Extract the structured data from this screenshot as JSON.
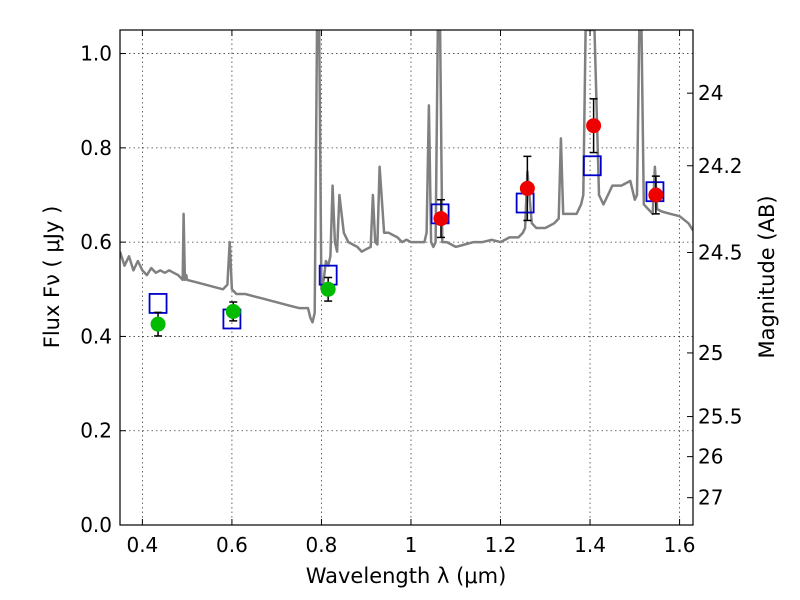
{
  "chart_data": {
    "type": "scatter",
    "title": "",
    "xlabel": "Wavelength  λ (μm)",
    "ylabel": "Flux  Fν  ( μJy )",
    "ylabel_right": "Magnitude (AB)",
    "xlim": [
      0.35,
      1.63
    ],
    "ylim": [
      0.0,
      1.05
    ],
    "grid": true,
    "x_ticks": [
      0.4,
      0.6,
      0.8,
      1.0,
      1.2,
      1.4,
      1.6
    ],
    "x_tick_labels": [
      "0.4",
      "0.6",
      "0.8",
      "1",
      "1.2",
      "1.4",
      "1.6"
    ],
    "y_ticks": [
      0.0,
      0.2,
      0.4,
      0.6,
      0.8,
      1.0
    ],
    "y_tick_labels": [
      "0.0",
      "0.2",
      "0.4",
      "0.6",
      "0.8",
      "1.0"
    ],
    "right_ticks": [
      {
        "label": "24",
        "flux": 0.916
      },
      {
        "label": "24.2",
        "flux": 0.762
      },
      {
        "label": "24.5",
        "flux": 0.578
      },
      {
        "label": "25",
        "flux": 0.365
      },
      {
        "label": "25.5",
        "flux": 0.23
      },
      {
        "label": "26",
        "flux": 0.145
      },
      {
        "label": "27",
        "flux": 0.058
      }
    ],
    "series": [
      {
        "name": "model spectrum",
        "kind": "line",
        "color": "#808080",
        "x": [
          0.35,
          0.36,
          0.37,
          0.38,
          0.39,
          0.4,
          0.41,
          0.42,
          0.43,
          0.44,
          0.45,
          0.46,
          0.47,
          0.48,
          0.49,
          0.492,
          0.495,
          0.498,
          0.5,
          0.52,
          0.54,
          0.56,
          0.58,
          0.59,
          0.595,
          0.6,
          0.605,
          0.61,
          0.63,
          0.65,
          0.67,
          0.69,
          0.71,
          0.73,
          0.75,
          0.77,
          0.775,
          0.78,
          0.785,
          0.79,
          0.795,
          0.8,
          0.805,
          0.81,
          0.815,
          0.82,
          0.825,
          0.83,
          0.835,
          0.84,
          0.85,
          0.86,
          0.87,
          0.88,
          0.89,
          0.9,
          0.91,
          0.915,
          0.92,
          0.925,
          0.93,
          0.94,
          0.95,
          0.96,
          0.97,
          0.98,
          0.99,
          1.0,
          1.01,
          1.02,
          1.03,
          1.035,
          1.04,
          1.045,
          1.05,
          1.055,
          1.06,
          1.065,
          1.07,
          1.08,
          1.09,
          1.1,
          1.12,
          1.14,
          1.16,
          1.18,
          1.2,
          1.22,
          1.24,
          1.25,
          1.255,
          1.26,
          1.27,
          1.28,
          1.3,
          1.32,
          1.33,
          1.335,
          1.34,
          1.35,
          1.37,
          1.38,
          1.385,
          1.39,
          1.4,
          1.41,
          1.42,
          1.43,
          1.45,
          1.47,
          1.49,
          1.5,
          1.505,
          1.51,
          1.515,
          1.52,
          1.53,
          1.54,
          1.545,
          1.55,
          1.56,
          1.58,
          1.6,
          1.62,
          1.63
        ],
        "y": [
          0.58,
          0.55,
          0.57,
          0.54,
          0.56,
          0.54,
          0.53,
          0.545,
          0.535,
          0.54,
          0.535,
          0.54,
          0.535,
          0.53,
          0.52,
          0.66,
          0.52,
          0.53,
          0.52,
          0.515,
          0.51,
          0.505,
          0.5,
          0.51,
          0.6,
          0.5,
          0.495,
          0.49,
          0.49,
          0.485,
          0.48,
          0.475,
          0.47,
          0.465,
          0.46,
          0.46,
          0.44,
          0.43,
          0.45,
          1.05,
          1.05,
          0.5,
          0.52,
          0.56,
          0.55,
          0.57,
          0.72,
          0.6,
          0.58,
          0.7,
          0.62,
          0.6,
          0.595,
          0.59,
          0.58,
          0.585,
          0.59,
          0.7,
          0.6,
          0.595,
          0.76,
          0.62,
          0.62,
          0.615,
          0.61,
          0.6,
          0.605,
          0.6,
          0.6,
          0.6,
          0.6,
          0.62,
          0.89,
          0.6,
          0.59,
          0.6,
          1.05,
          1.05,
          0.6,
          0.6,
          0.595,
          0.59,
          0.595,
          0.6,
          0.6,
          0.605,
          0.6,
          0.61,
          0.61,
          0.62,
          0.63,
          0.75,
          0.64,
          0.63,
          0.63,
          0.64,
          0.65,
          0.82,
          0.66,
          0.66,
          0.66,
          0.68,
          0.7,
          1.05,
          1.05,
          1.05,
          0.7,
          0.68,
          0.72,
          0.72,
          0.73,
          0.69,
          0.7,
          1.05,
          1.05,
          0.68,
          0.67,
          0.66,
          0.76,
          0.67,
          0.665,
          0.66,
          0.655,
          0.64,
          0.625
        ]
      },
      {
        "name": "model photometry",
        "kind": "open-square",
        "color": "#0000cc",
        "x": [
          0.435,
          0.6,
          0.815,
          1.065,
          1.255,
          1.405,
          1.545
        ],
        "y": [
          0.47,
          0.437,
          0.53,
          0.66,
          0.683,
          0.762,
          0.707
        ]
      },
      {
        "name": "observed (green)",
        "kind": "filled-circle",
        "color": "#00bb00",
        "x": [
          0.435,
          0.603,
          0.815
        ],
        "y": [
          0.426,
          0.453,
          0.5
        ],
        "yerr": [
          0.025,
          0.02,
          0.025
        ]
      },
      {
        "name": "observed (red)",
        "kind": "filled-circle",
        "color": "#ee0000",
        "x": [
          1.067,
          1.26,
          1.408,
          1.547
        ],
        "y": [
          0.65,
          0.714,
          0.847,
          0.7
        ],
        "yerr": [
          0.04,
          0.068,
          0.057,
          0.04
        ]
      }
    ]
  }
}
